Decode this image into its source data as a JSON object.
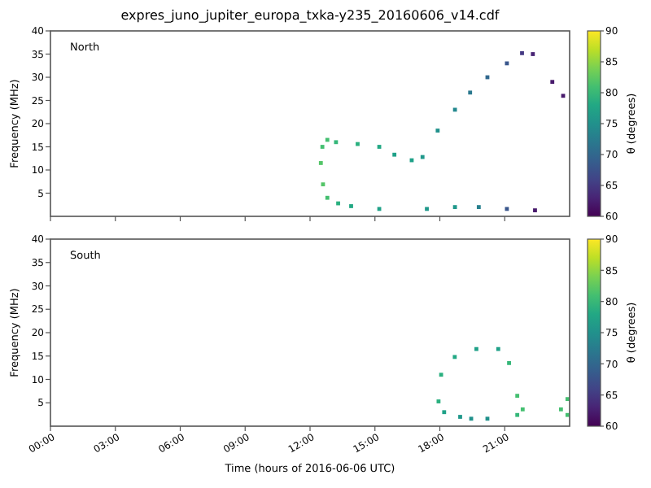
{
  "chart_data": [
    {
      "type": "scatter",
      "title": "expres_juno_jupiter_europa_txka-y235_20160606_v14.cdf",
      "ylabel": "Frequency (MHz)",
      "clabel": "θ (degrees)",
      "annotations": [
        "North"
      ],
      "marker": "square",
      "tick_labels": "y",
      "xlim": [
        0,
        24
      ],
      "xticks": [
        0,
        3,
        6,
        9,
        12,
        15,
        18,
        21
      ],
      "ylim": [
        0,
        40
      ],
      "yticks": [
        5,
        10,
        15,
        20,
        25,
        30,
        35,
        40
      ],
      "clim": [
        60,
        90
      ],
      "cticks": [
        60,
        65,
        70,
        75,
        80,
        85,
        90
      ],
      "x": [
        23.7,
        23.2,
        22.3,
        21.8,
        21.1,
        20.2,
        19.4,
        18.7,
        17.9,
        17.2,
        16.7,
        15.9,
        15.2,
        14.2,
        13.2,
        12.8,
        12.57,
        12.5,
        12.6,
        12.8,
        13.3,
        13.9,
        15.2,
        17.4,
        18.7,
        19.8,
        21.1,
        22.4
      ],
      "values": [
        26,
        29,
        35,
        35.2,
        33,
        30,
        26.7,
        23,
        18.5,
        12.8,
        12.1,
        13.3,
        15,
        15.6,
        16,
        16.5,
        15,
        11.5,
        6.9,
        4,
        2.8,
        2.2,
        1.6,
        1.6,
        2,
        2,
        1.6,
        1.3
      ],
      "cvalues": [
        62,
        62,
        63,
        65,
        68,
        70,
        72,
        74,
        75,
        76,
        77,
        77,
        78,
        79,
        80,
        81,
        81,
        82,
        82,
        81,
        79,
        78,
        77,
        76,
        76,
        73,
        68,
        62
      ]
    },
    {
      "type": "scatter",
      "ylabel": "Frequency (MHz)",
      "xlabel": "Time (hours of 2016-06-06 UTC)",
      "clabel": "θ (degrees)",
      "annotations": [
        "South"
      ],
      "marker": "square",
      "xlim": [
        0,
        24
      ],
      "xticks": [
        {
          "value": 0,
          "label": "00:00"
        },
        {
          "value": 3,
          "label": "03:00"
        },
        {
          "value": 6,
          "label": "06:00"
        },
        {
          "value": 9,
          "label": "09:00"
        },
        {
          "value": 12,
          "label": "12:00"
        },
        {
          "value": 15,
          "label": "15:00"
        },
        {
          "value": 18,
          "label": "18:00"
        },
        {
          "value": 21,
          "label": "21:00"
        }
      ],
      "ylim": [
        0,
        40
      ],
      "yticks": [
        5,
        10,
        15,
        20,
        25,
        30,
        35,
        40
      ],
      "clim": [
        60,
        90
      ],
      "cticks": [
        60,
        65,
        70,
        75,
        80,
        85,
        90
      ],
      "x": [
        18.2,
        17.94,
        18.06,
        18.69,
        19.69,
        20.7,
        21.2,
        21.58,
        21.83,
        21.58,
        20.2,
        19.45,
        18.94,
        23.6,
        23.9,
        23.9
      ],
      "values": [
        3,
        5.3,
        11,
        14.8,
        16.5,
        16.5,
        13.5,
        6.5,
        3.6,
        2.4,
        1.6,
        1.6,
        2,
        3.6,
        5.8,
        2.4
      ],
      "cvalues": [
        77,
        79,
        79,
        78,
        77,
        77,
        80,
        81,
        81,
        80,
        75,
        75,
        76,
        81,
        81,
        81
      ]
    }
  ]
}
